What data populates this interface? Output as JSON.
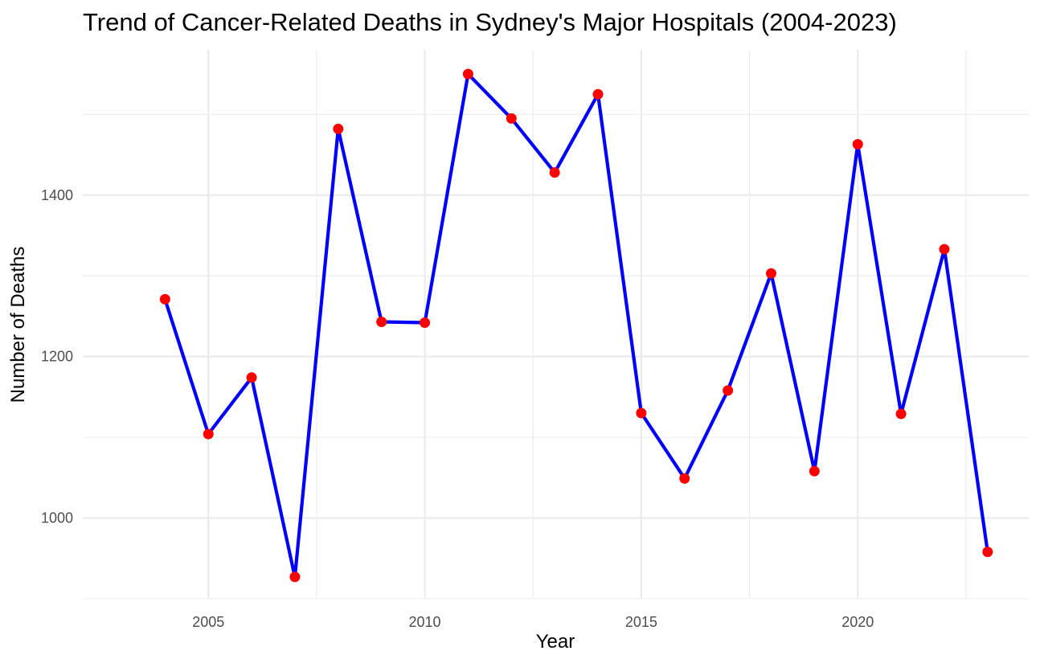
{
  "chart_data": {
    "type": "line",
    "title": "Trend of Cancer-Related Deaths in Sydney's Major Hospitals (2004-2023)",
    "xlabel": "Year",
    "ylabel": "Number of Deaths",
    "xlim": [
      2002.1,
      2023.95
    ],
    "ylim": [
      900,
      1580
    ],
    "x_ticks": [
      2005,
      2010,
      2015,
      2020
    ],
    "y_ticks": [
      1000,
      1200,
      1400
    ],
    "x_minor": [
      2007.5,
      2012.5,
      2017.5,
      2022.5
    ],
    "y_minor": [
      900,
      1100,
      1300,
      1500
    ],
    "grid": true,
    "legend": "none",
    "colors": {
      "line": "#0000ff",
      "points": "#ff0000",
      "grid": "#ebebeb"
    },
    "series": [
      {
        "x": [
          2004,
          2005,
          2006,
          2007,
          2008,
          2009,
          2010,
          2011,
          2012,
          2013,
          2014,
          2015,
          2016,
          2017,
          2018,
          2019,
          2020,
          2021,
          2022,
          2023
        ],
        "values": [
          1271,
          1104,
          1174,
          927,
          1482,
          1243,
          1242,
          1550,
          1495,
          1428,
          1525,
          1130,
          1049,
          1158,
          1303,
          1058,
          1463,
          1129,
          1333,
          958
        ]
      }
    ]
  }
}
